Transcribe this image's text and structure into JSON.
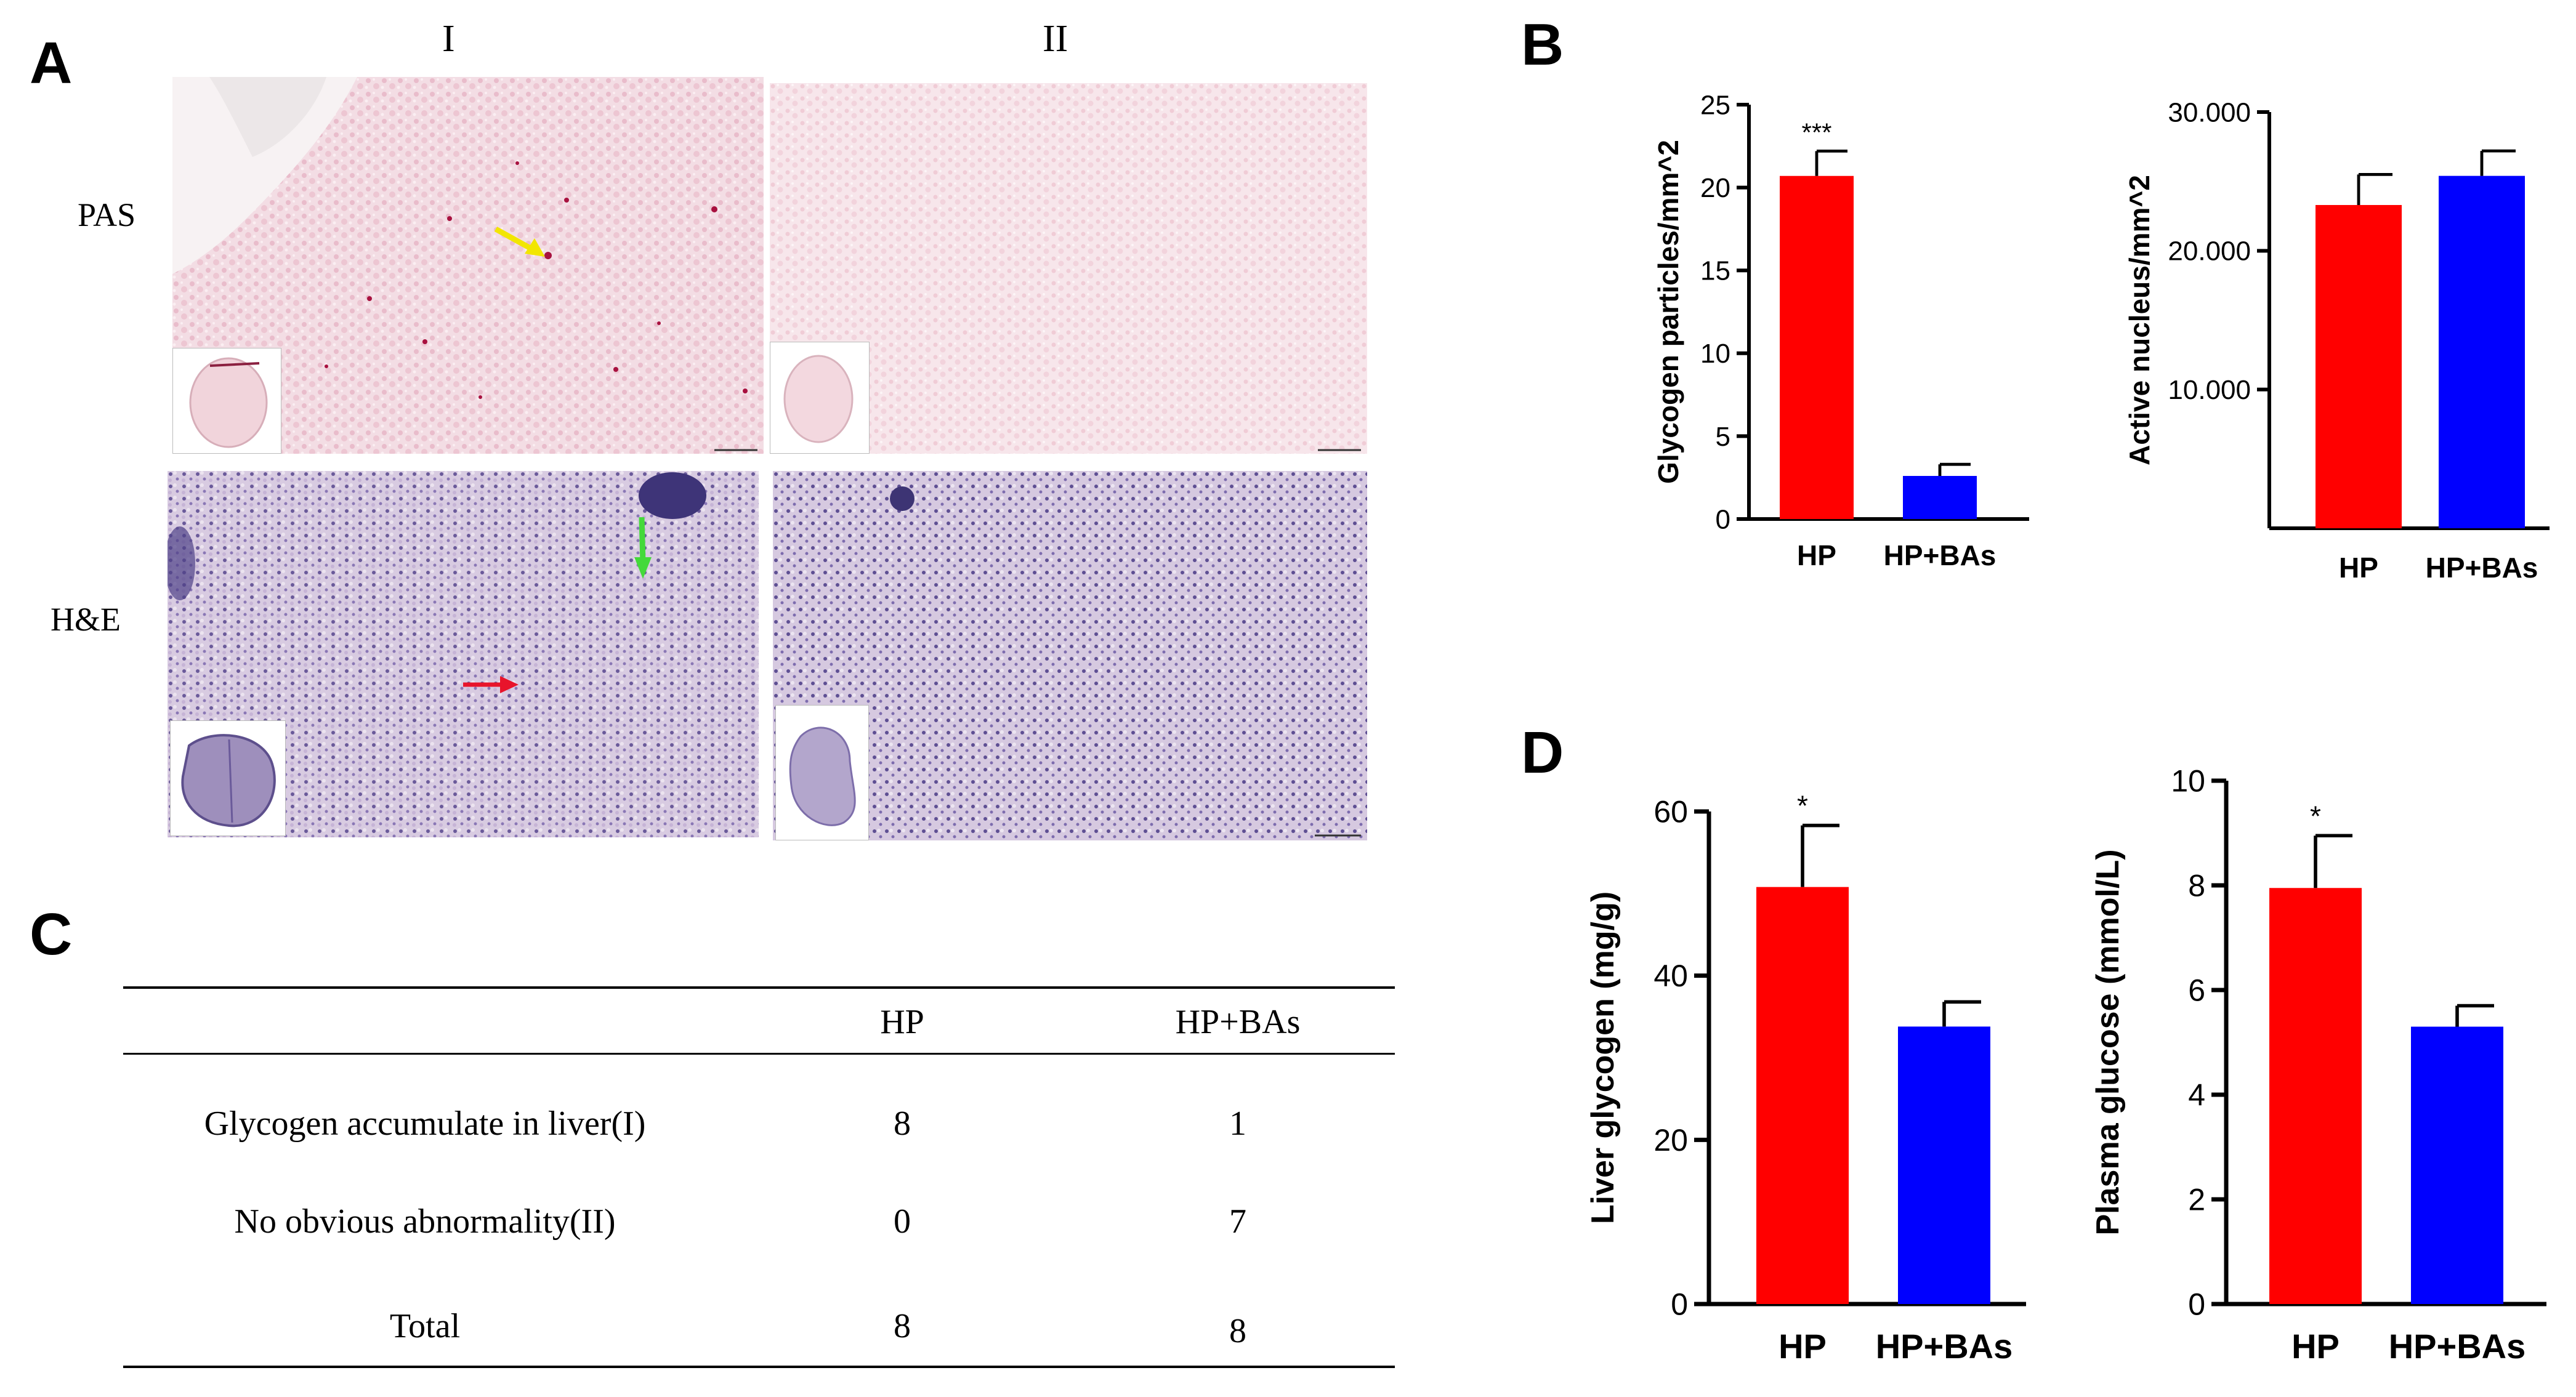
{
  "panel_labels": {
    "a": "A",
    "b": "B",
    "c": "C",
    "d": "D"
  },
  "panel_a": {
    "columns": [
      "I",
      "II"
    ],
    "rows": [
      "PAS",
      "H&E"
    ],
    "arrows": [
      "yellow",
      "green",
      "red"
    ]
  },
  "panel_c": {
    "headers": [
      "",
      "HP",
      "HP+BAs"
    ],
    "rows": [
      [
        "Glycogen accumulate in liver(I)",
        "8",
        "1"
      ],
      [
        "No obvious abnormality(II)",
        "0",
        "7"
      ],
      [
        "Total",
        "8",
        "8"
      ]
    ]
  },
  "colors": {
    "hp": "#ff0000",
    "hpbas": "#0000ff",
    "arrow_yellow": "#f2e600",
    "arrow_green": "#44d93a",
    "arrow_red": "#e8142b"
  },
  "chart_data": [
    {
      "panel": "B",
      "type": "bar",
      "categories": [
        "HP",
        "HP+BAs"
      ],
      "values": [
        20.7,
        2.6
      ],
      "errors": [
        1.5,
        0.7
      ],
      "significance": [
        "***",
        ""
      ],
      "ylabel": "Glycogen particles/mm^2",
      "ylim": [
        0,
        25
      ],
      "yticks": [
        "0",
        "5",
        "10",
        "15",
        "20",
        "25"
      ]
    },
    {
      "panel": "B",
      "type": "bar",
      "categories": [
        "HP",
        "HP+BAs"
      ],
      "values": [
        23.3,
        25.4
      ],
      "errors": [
        2.2,
        1.8
      ],
      "significance": [
        "",
        ""
      ],
      "ylabel": "Active nucleus/mm^2",
      "ylim": [
        0,
        30
      ],
      "yticks": [
        "10.000",
        "20.000",
        "30.000"
      ]
    },
    {
      "panel": "D",
      "type": "bar",
      "categories": [
        "HP",
        "HP+BAs"
      ],
      "values": [
        50.8,
        33.8
      ],
      "errors": [
        7.5,
        3.0
      ],
      "significance": [
        "*",
        ""
      ],
      "ylabel": "Liver glycogen (mg/g)",
      "ylim": [
        0,
        60
      ],
      "yticks": [
        "0",
        "20",
        "40",
        "60"
      ]
    },
    {
      "panel": "D",
      "type": "bar",
      "categories": [
        "HP",
        "HP+BAs"
      ],
      "values": [
        7.95,
        5.3
      ],
      "errors": [
        1.0,
        0.4
      ],
      "significance": [
        "*",
        ""
      ],
      "ylabel": "Plasma glucose (mmol/L)",
      "ylim": [
        0,
        10
      ],
      "yticks": [
        "0",
        "2",
        "4",
        "6",
        "8",
        "10"
      ]
    }
  ]
}
